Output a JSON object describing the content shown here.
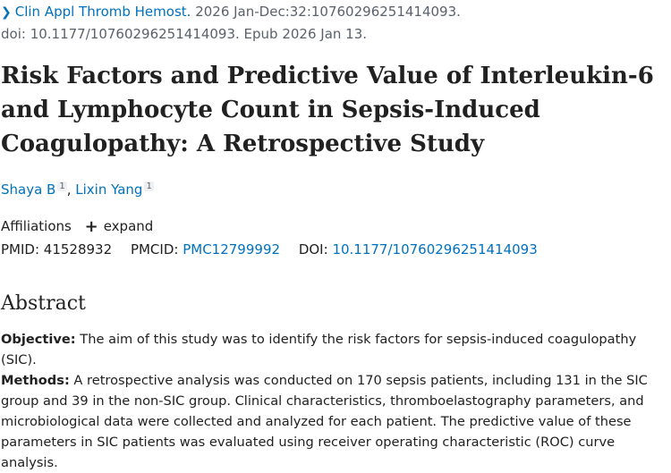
{
  "citation": {
    "journal": "Clin Appl Thromb Hemost.",
    "details": "2026 Jan-Dec:32:10760296251414093.",
    "doi_epub": "doi: 10.1177/10760296251414093. Epub 2026 Jan 13."
  },
  "title": "Risk Factors and Predictive Value of Interleukin-6 and Lymphocyte Count in Sepsis-Induced Coagulopathy: A Retrospective Study",
  "authors": [
    {
      "name": "Shaya B",
      "affil": "1"
    },
    {
      "name": "Lixin Yang",
      "affil": "1"
    }
  ],
  "affiliations": {
    "label": "Affiliations",
    "expand_label": "expand"
  },
  "ids": {
    "pmid_label": "PMID:",
    "pmid": "41528932",
    "pmcid_label": "PMCID:",
    "pmcid": "PMC12799992",
    "doi_label": "DOI:",
    "doi": "10.1177/10760296251414093"
  },
  "abstract": {
    "heading": "Abstract",
    "objective_label": "Objective:",
    "objective": "The aim of this study was to identify the risk factors for sepsis-induced coagulopathy (SIC).",
    "methods_label": "Methods:",
    "methods": "A retrospective analysis was conducted on 170 sepsis patients, including 131 in the SIC group and 39 in the non-SIC group. Clinical characteristics, thromboelastography parameters, and microbiological data were collected and analyzed for each patient. The predictive value of these parameters in SIC patients was evaluated using receiver operating characteristic (ROC) curve analysis."
  }
}
